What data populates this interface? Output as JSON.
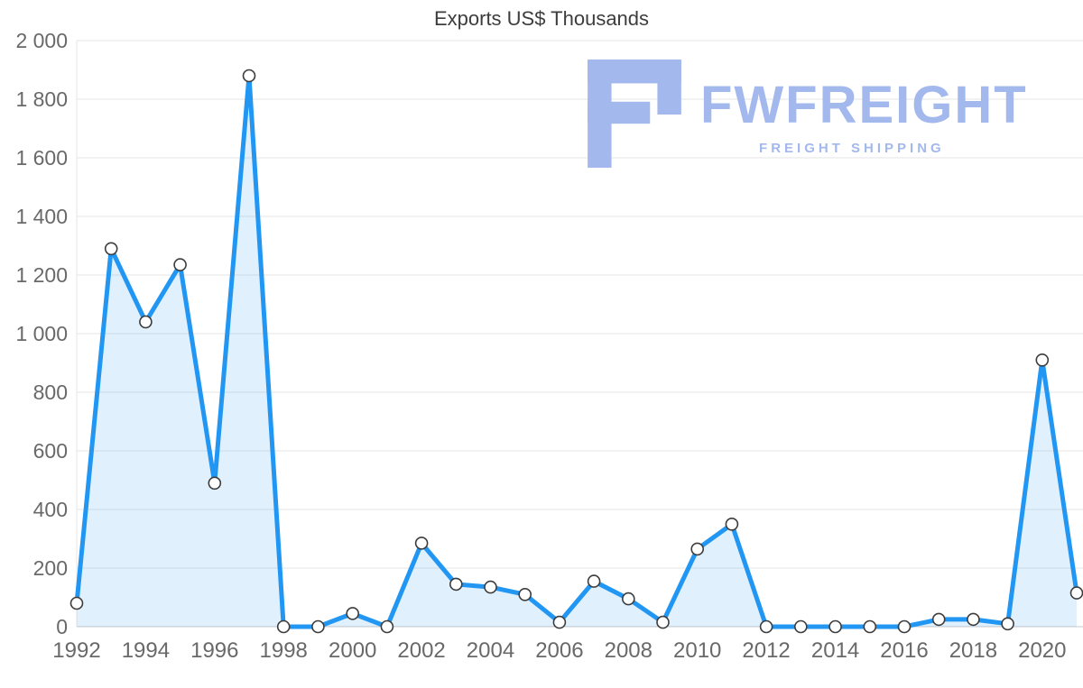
{
  "title": "Exports US$ Thousands",
  "watermark": {
    "brand": "FWFREIGHT",
    "tagline": "FREIGHT SHIPPING",
    "color": "#a3b8ec"
  },
  "chart_data": {
    "type": "area",
    "title": "Exports US$ Thousands",
    "xlabel": "",
    "ylabel": "",
    "x": [
      1992,
      1993,
      1994,
      1995,
      1996,
      1997,
      1998,
      1999,
      2000,
      2001,
      2002,
      2003,
      2004,
      2005,
      2006,
      2007,
      2008,
      2009,
      2010,
      2011,
      2012,
      2013,
      2014,
      2015,
      2016,
      2017,
      2018,
      2019,
      2020,
      2021
    ],
    "values": [
      80,
      1290,
      1040,
      1235,
      490,
      1880,
      0,
      0,
      45,
      0,
      285,
      145,
      135,
      110,
      15,
      155,
      95,
      15,
      265,
      350,
      0,
      0,
      0,
      0,
      0,
      25,
      25,
      10,
      910,
      115
    ],
    "ylim": [
      0,
      2000
    ],
    "yticks": [
      0,
      200,
      400,
      600,
      800,
      1000,
      1200,
      1400,
      1600,
      1800,
      2000
    ],
    "ytick_labels": [
      "0",
      "200",
      "400",
      "600",
      "800",
      "1 000",
      "1 200",
      "1 400",
      "1 600",
      "1 800",
      "2 000"
    ],
    "xticks": [
      1992,
      1994,
      1996,
      1998,
      2000,
      2002,
      2004,
      2006,
      2008,
      2010,
      2012,
      2014,
      2016,
      2018,
      2020
    ],
    "grid": true,
    "legend": "none",
    "colors": {
      "line": "#2196f3",
      "fill": "rgba(33,150,243,0.14)",
      "marker_fill": "#ffffff",
      "marker_stroke": "#3c3c3c",
      "grid": "#e6e6e6",
      "axis_line": "#c9c9c9",
      "tick_label": "#696969",
      "title": "#3d3d3d"
    }
  }
}
